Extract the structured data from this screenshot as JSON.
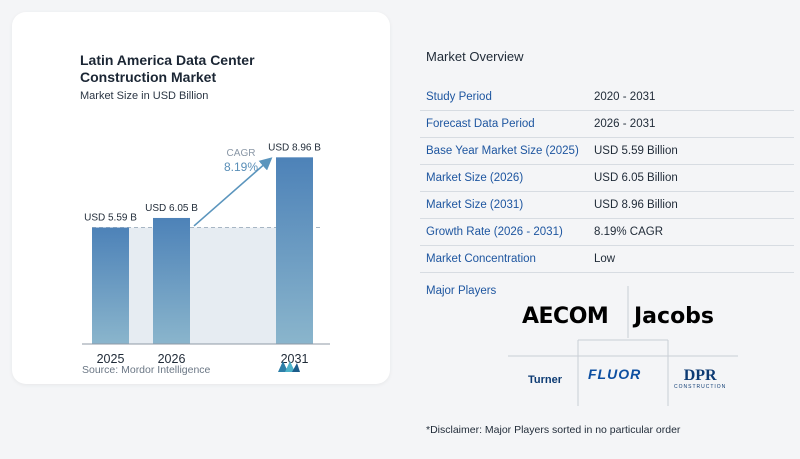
{
  "chart": {
    "title": "Latin America Data Center Construction Market",
    "subtitle": "Market Size in USD Billion",
    "source": "Source:  Mordor Intelligence",
    "cagr_label": "CAGR",
    "cagr_value": "8.19%"
  },
  "chart_data": {
    "type": "bar",
    "title": "Latin America Data Center Construction Market",
    "subtitle": "Market Size in USD Billion",
    "categories": [
      "2025",
      "2026",
      "2031"
    ],
    "values": [
      5.59,
      6.05,
      8.96
    ],
    "data_labels": [
      "USD 5.59 B",
      "USD 6.05 B",
      "USD 8.96 B"
    ],
    "ylim": [
      0,
      9.6
    ],
    "annotation": "CAGR 8.19%",
    "grid": false,
    "colors": {
      "bar_top": "#4d82b8",
      "bar_bottom": "#8ab5cc",
      "band": "#e6ecf2",
      "arrow": "#5b95bd"
    }
  },
  "overview": {
    "title": "Market Overview",
    "rows": [
      {
        "label": "Study Period",
        "value": "2020 - 2031"
      },
      {
        "label": "Forecast Data Period",
        "value": "2026 - 2031"
      },
      {
        "label": "Base Year Market Size (2025)",
        "value": "USD 5.59 Billion"
      },
      {
        "label": "Market Size (2026)",
        "value": "USD 6.05 Billion"
      },
      {
        "label": "Market Size (2031)",
        "value": "USD 8.96 Billion"
      },
      {
        "label": "Growth Rate (2026 - 2031)",
        "value": "8.19% CAGR"
      },
      {
        "label": "Market Concentration",
        "value": "Low"
      }
    ],
    "players_title": "Major Players",
    "players": [
      "AECOM",
      "Jacobs",
      "Turner",
      "FLUOR",
      "DPR"
    ],
    "dpr_subtitle": "CONSTRUCTION",
    "disclaimer": "*Disclaimer: Major Players sorted in no particular order"
  }
}
